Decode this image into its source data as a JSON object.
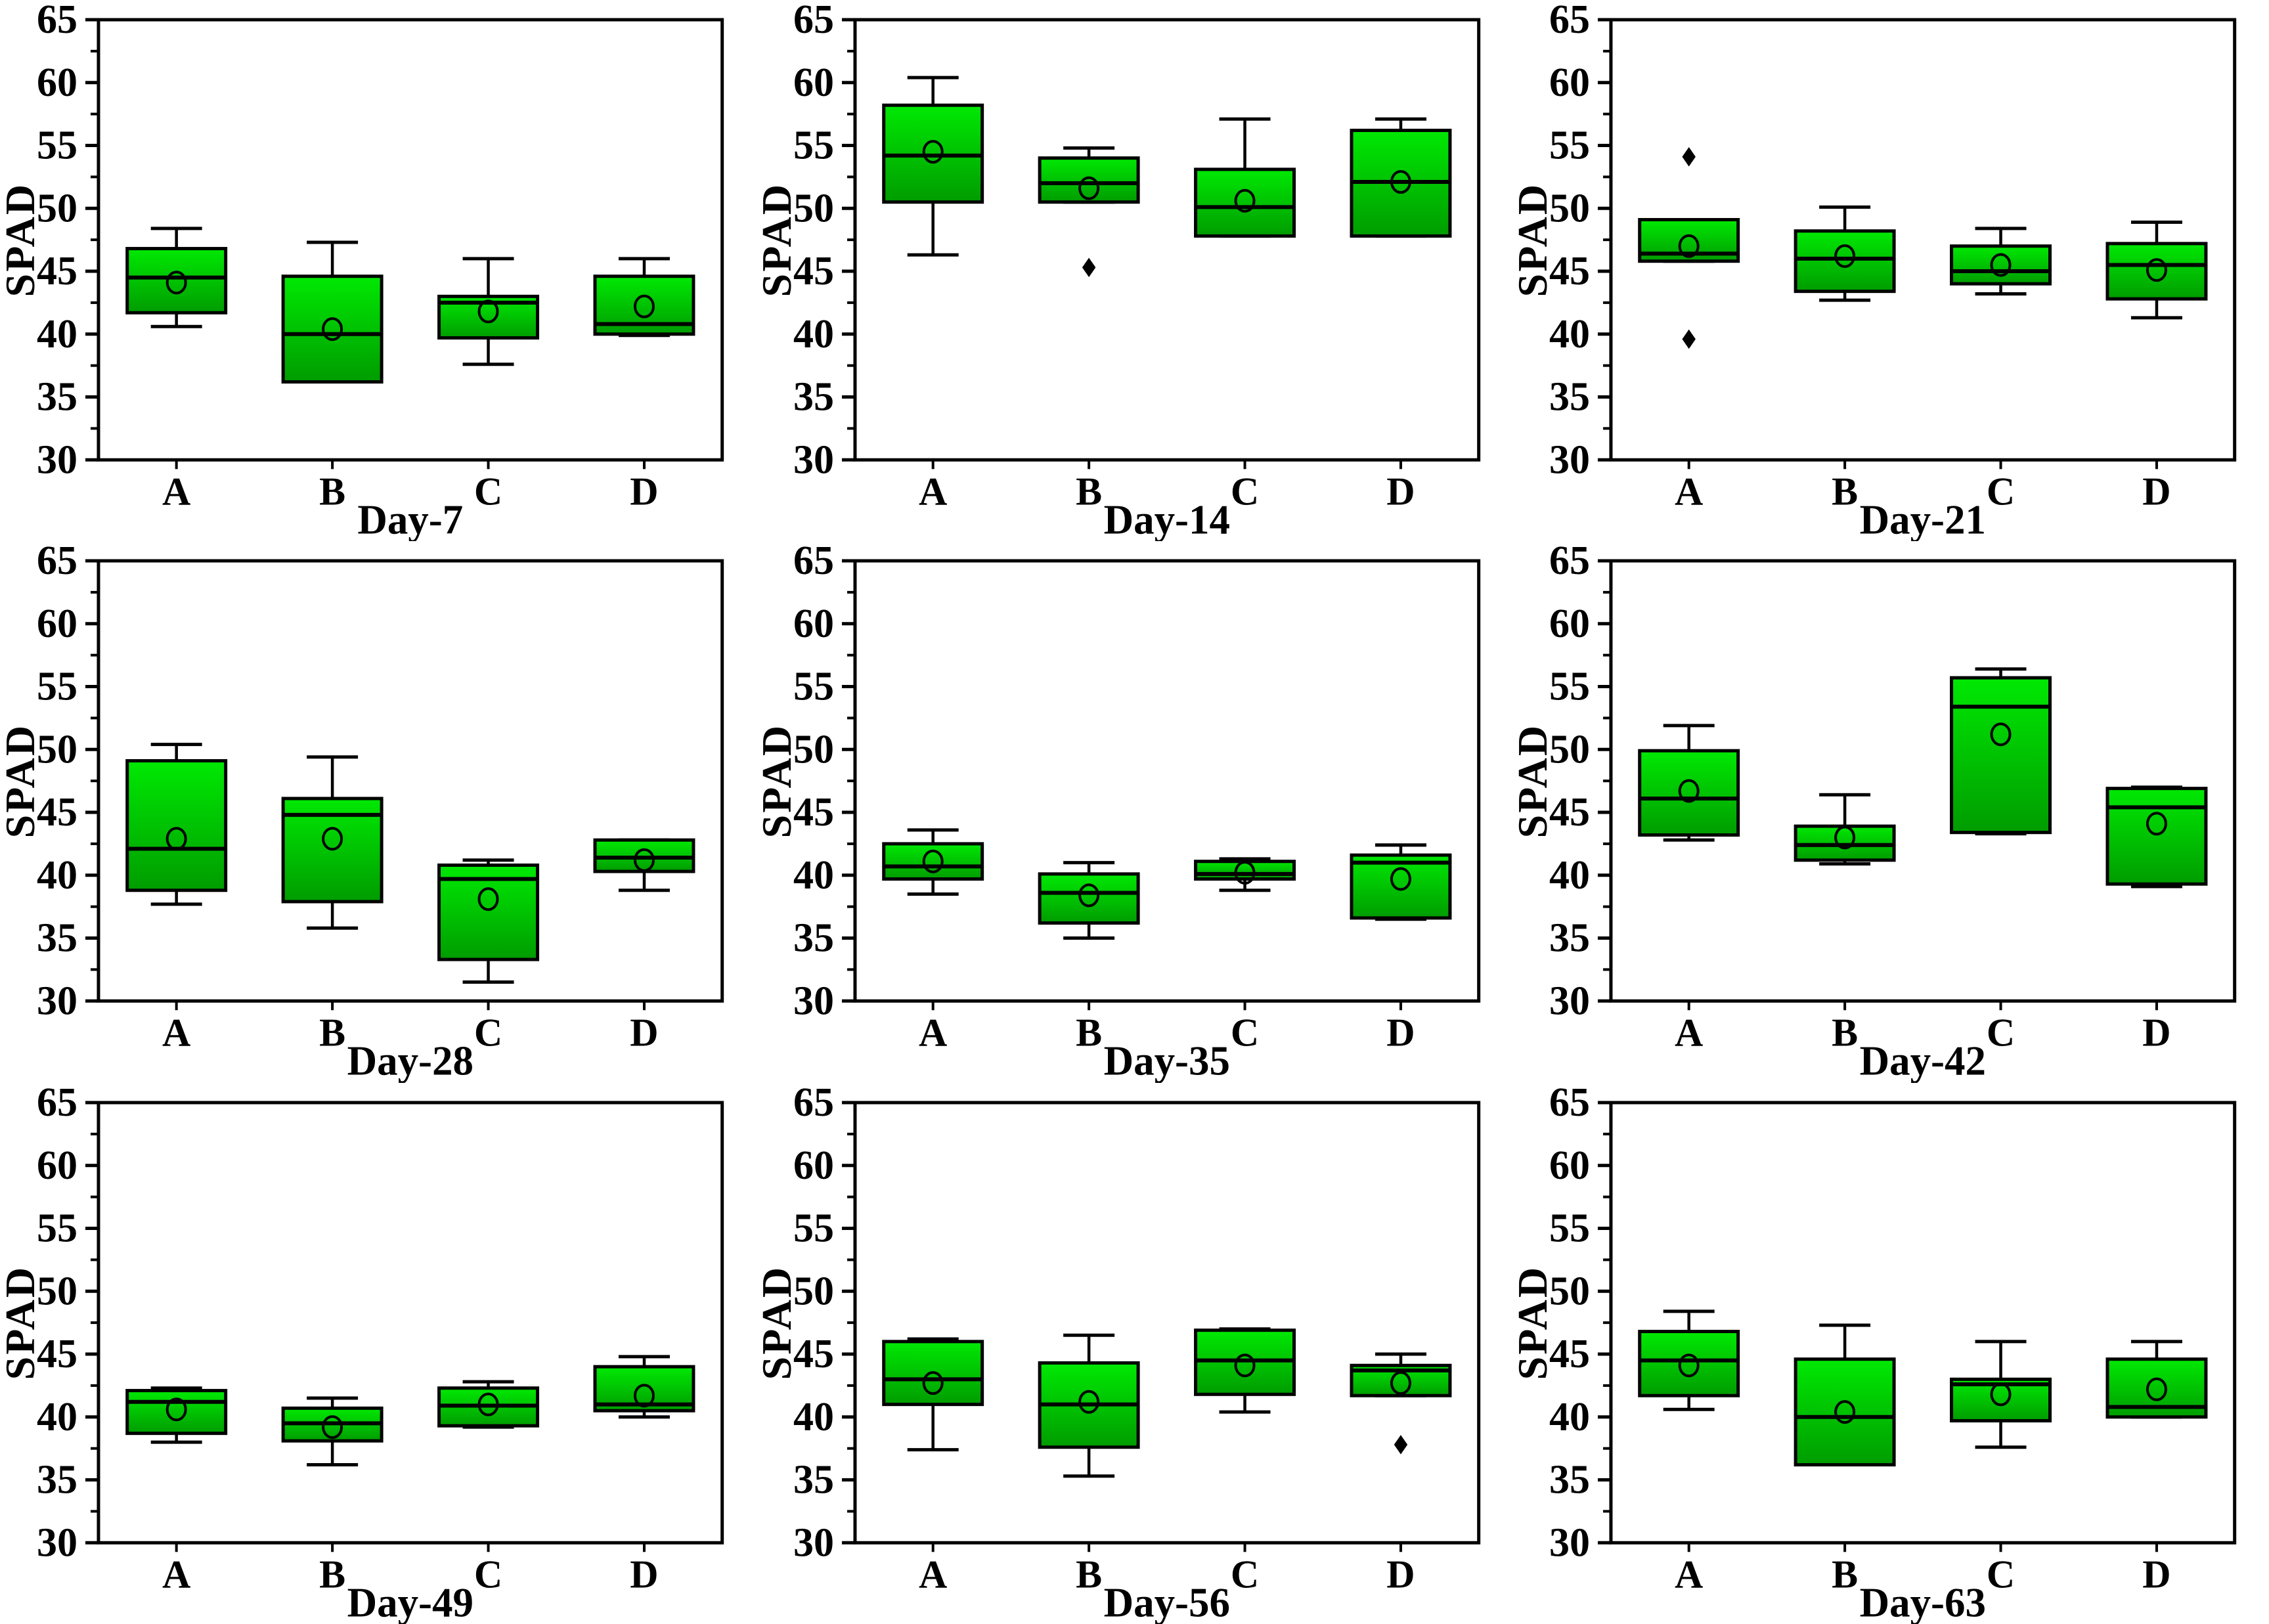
{
  "page": {
    "background": "#ffffff"
  },
  "style": {
    "box_fill_top": "#00e903",
    "box_fill_bottom": "#009c00",
    "stroke_color": "#000000",
    "mean_marker": "open-circle",
    "outlier_marker": "filled-diamond"
  },
  "axis": {
    "ytick_labels": [
      "30",
      "35",
      "40",
      "45",
      "50",
      "55",
      "60",
      "65"
    ]
  },
  "chart_data": [
    {
      "type": "box",
      "xlabel": "Day-7",
      "ylabel": "SPAD",
      "categories": [
        "A",
        "B",
        "C",
        "D"
      ],
      "ylim": [
        30,
        65
      ],
      "ytick_step": 5,
      "yminor_step": 2.5,
      "boxes": [
        {
          "category": "A",
          "low": 40.6,
          "q1": 41.7,
          "median": 44.5,
          "q3": 46.8,
          "high": 48.4,
          "mean": 44.1,
          "outliers": []
        },
        {
          "category": "B",
          "low": 36.2,
          "q1": 36.2,
          "median": 40.0,
          "q3": 44.6,
          "high": 47.3,
          "mean": 40.4,
          "outliers": []
        },
        {
          "category": "C",
          "low": 37.6,
          "q1": 39.7,
          "median": 42.5,
          "q3": 43.0,
          "high": 46.0,
          "mean": 41.8,
          "outliers": []
        },
        {
          "category": "D",
          "low": 39.9,
          "q1": 40.0,
          "median": 40.8,
          "q3": 44.6,
          "high": 46.0,
          "mean": 42.2,
          "outliers": []
        }
      ]
    },
    {
      "type": "box",
      "xlabel": "Day-14",
      "ylabel": "SPAD",
      "categories": [
        "A",
        "B",
        "C",
        "D"
      ],
      "ylim": [
        30,
        65
      ],
      "ytick_step": 5,
      "yminor_step": 2.5,
      "boxes": [
        {
          "category": "A",
          "low": 46.3,
          "q1": 50.5,
          "median": 54.2,
          "q3": 58.2,
          "high": 60.4,
          "mean": 54.5,
          "outliers": []
        },
        {
          "category": "B",
          "low": 50.5,
          "q1": 50.5,
          "median": 52.0,
          "q3": 54.0,
          "high": 54.8,
          "mean": 51.6,
          "outliers": [
            45.3
          ]
        },
        {
          "category": "C",
          "low": 47.8,
          "q1": 47.8,
          "median": 50.1,
          "q3": 53.1,
          "high": 57.1,
          "mean": 50.6,
          "outliers": []
        },
        {
          "category": "D",
          "low": 47.8,
          "q1": 47.8,
          "median": 52.1,
          "q3": 56.2,
          "high": 57.1,
          "mean": 52.1,
          "outliers": []
        }
      ]
    },
    {
      "type": "box",
      "xlabel": "Day-21",
      "ylabel": "SPAD",
      "categories": [
        "A",
        "B",
        "C",
        "D"
      ],
      "ylim": [
        30,
        65
      ],
      "ytick_step": 5,
      "yminor_step": 2.5,
      "boxes": [
        {
          "category": "A",
          "low": 45.8,
          "q1": 45.8,
          "median": 46.4,
          "q3": 49.1,
          "high": 49.1,
          "mean": 47.0,
          "outliers": [
            54.1,
            39.6
          ]
        },
        {
          "category": "B",
          "low": 42.7,
          "q1": 43.4,
          "median": 46.0,
          "q3": 48.2,
          "high": 50.1,
          "mean": 46.2,
          "outliers": []
        },
        {
          "category": "C",
          "low": 43.2,
          "q1": 44.0,
          "median": 45.0,
          "q3": 47.0,
          "high": 48.4,
          "mean": 45.5,
          "outliers": []
        },
        {
          "category": "D",
          "low": 41.3,
          "q1": 42.8,
          "median": 45.5,
          "q3": 47.2,
          "high": 48.9,
          "mean": 45.1,
          "outliers": []
        }
      ]
    },
    {
      "type": "box",
      "xlabel": "Day-28",
      "ylabel": "SPAD",
      "categories": [
        "A",
        "B",
        "C",
        "D"
      ],
      "ylim": [
        30,
        65
      ],
      "ytick_step": 5,
      "yminor_step": 2.5,
      "boxes": [
        {
          "category": "A",
          "low": 37.7,
          "q1": 38.8,
          "median": 42.1,
          "q3": 49.1,
          "high": 50.4,
          "mean": 42.9,
          "outliers": []
        },
        {
          "category": "B",
          "low": 35.8,
          "q1": 37.9,
          "median": 44.8,
          "q3": 46.1,
          "high": 49.4,
          "mean": 42.9,
          "outliers": []
        },
        {
          "category": "C",
          "low": 31.5,
          "q1": 33.3,
          "median": 39.7,
          "q3": 40.8,
          "high": 41.2,
          "mean": 38.1,
          "outliers": []
        },
        {
          "category": "D",
          "low": 38.8,
          "q1": 40.3,
          "median": 41.4,
          "q3": 42.8,
          "high": 42.8,
          "mean": 41.2,
          "outliers": []
        }
      ]
    },
    {
      "type": "box",
      "xlabel": "Day-35",
      "ylabel": "SPAD",
      "categories": [
        "A",
        "B",
        "C",
        "D"
      ],
      "ylim": [
        30,
        65
      ],
      "ytick_step": 5,
      "yminor_step": 2.5,
      "boxes": [
        {
          "category": "A",
          "low": 38.5,
          "q1": 39.7,
          "median": 40.7,
          "q3": 42.5,
          "high": 43.6,
          "mean": 41.1,
          "outliers": []
        },
        {
          "category": "B",
          "low": 35.0,
          "q1": 36.2,
          "median": 38.6,
          "q3": 40.1,
          "high": 41.0,
          "mean": 38.4,
          "outliers": []
        },
        {
          "category": "C",
          "low": 38.8,
          "q1": 39.7,
          "median": 40.1,
          "q3": 41.1,
          "high": 41.3,
          "mean": 40.2,
          "outliers": []
        },
        {
          "category": "D",
          "low": 36.5,
          "q1": 36.6,
          "median": 41.0,
          "q3": 41.6,
          "high": 42.4,
          "mean": 39.7,
          "outliers": []
        }
      ]
    },
    {
      "type": "box",
      "xlabel": "Day-42",
      "ylabel": "SPAD",
      "categories": [
        "A",
        "B",
        "C",
        "D"
      ],
      "ylim": [
        30,
        65
      ],
      "ytick_step": 5,
      "yminor_step": 2.5,
      "boxes": [
        {
          "category": "A",
          "low": 42.8,
          "q1": 43.2,
          "median": 46.1,
          "q3": 49.9,
          "high": 51.9,
          "mean": 46.7,
          "outliers": []
        },
        {
          "category": "B",
          "low": 40.9,
          "q1": 41.2,
          "median": 42.4,
          "q3": 43.9,
          "high": 46.4,
          "mean": 43.0,
          "outliers": []
        },
        {
          "category": "C",
          "low": 43.3,
          "q1": 43.4,
          "median": 53.4,
          "q3": 55.7,
          "high": 56.4,
          "mean": 51.2,
          "outliers": []
        },
        {
          "category": "D",
          "low": 39.1,
          "q1": 39.3,
          "median": 45.4,
          "q3": 46.9,
          "high": 47.0,
          "mean": 44.1,
          "outliers": []
        }
      ]
    },
    {
      "type": "box",
      "xlabel": "Day-49",
      "ylabel": "SPAD",
      "categories": [
        "A",
        "B",
        "C",
        "D"
      ],
      "ylim": [
        30,
        65
      ],
      "ytick_step": 5,
      "yminor_step": 2.5,
      "boxes": [
        {
          "category": "A",
          "low": 38.0,
          "q1": 38.7,
          "median": 41.2,
          "q3": 42.1,
          "high": 42.3,
          "mean": 40.6,
          "outliers": []
        },
        {
          "category": "B",
          "low": 36.2,
          "q1": 38.1,
          "median": 39.5,
          "q3": 40.7,
          "high": 41.5,
          "mean": 39.2,
          "outliers": []
        },
        {
          "category": "C",
          "low": 39.2,
          "q1": 39.3,
          "median": 40.9,
          "q3": 42.3,
          "high": 42.8,
          "mean": 41.0,
          "outliers": []
        },
        {
          "category": "D",
          "low": 40.0,
          "q1": 40.5,
          "median": 41.0,
          "q3": 44.0,
          "high": 44.8,
          "mean": 41.7,
          "outliers": []
        }
      ]
    },
    {
      "type": "box",
      "xlabel": "Day-56",
      "ylabel": "SPAD",
      "categories": [
        "A",
        "B",
        "C",
        "D"
      ],
      "ylim": [
        30,
        65
      ],
      "ytick_step": 5,
      "yminor_step": 2.5,
      "boxes": [
        {
          "category": "A",
          "low": 37.4,
          "q1": 41.0,
          "median": 43.0,
          "q3": 46.0,
          "high": 46.2,
          "mean": 42.7,
          "outliers": []
        },
        {
          "category": "B",
          "low": 35.3,
          "q1": 37.6,
          "median": 41.0,
          "q3": 44.3,
          "high": 46.5,
          "mean": 41.2,
          "outliers": []
        },
        {
          "category": "C",
          "low": 40.4,
          "q1": 41.8,
          "median": 44.5,
          "q3": 46.9,
          "high": 47.0,
          "mean": 44.1,
          "outliers": []
        },
        {
          "category": "D",
          "low": 41.7,
          "q1": 41.7,
          "median": 43.7,
          "q3": 44.1,
          "high": 45.0,
          "mean": 42.7,
          "outliers": [
            37.8
          ]
        }
      ]
    },
    {
      "type": "box",
      "xlabel": "Day-63",
      "ylabel": "SPAD",
      "categories": [
        "A",
        "B",
        "C",
        "D"
      ],
      "ylim": [
        30,
        65
      ],
      "ytick_step": 5,
      "yminor_step": 2.5,
      "boxes": [
        {
          "category": "A",
          "low": 40.6,
          "q1": 41.7,
          "median": 44.5,
          "q3": 46.8,
          "high": 48.4,
          "mean": 44.1,
          "outliers": []
        },
        {
          "category": "B",
          "low": 36.2,
          "q1": 36.2,
          "median": 40.0,
          "q3": 44.6,
          "high": 47.3,
          "mean": 40.4,
          "outliers": []
        },
        {
          "category": "C",
          "low": 37.6,
          "q1": 39.7,
          "median": 42.6,
          "q3": 43.0,
          "high": 46.0,
          "mean": 41.8,
          "outliers": []
        },
        {
          "category": "D",
          "low": 40.0,
          "q1": 40.0,
          "median": 40.8,
          "q3": 44.6,
          "high": 46.0,
          "mean": 42.2,
          "outliers": []
        }
      ]
    }
  ]
}
